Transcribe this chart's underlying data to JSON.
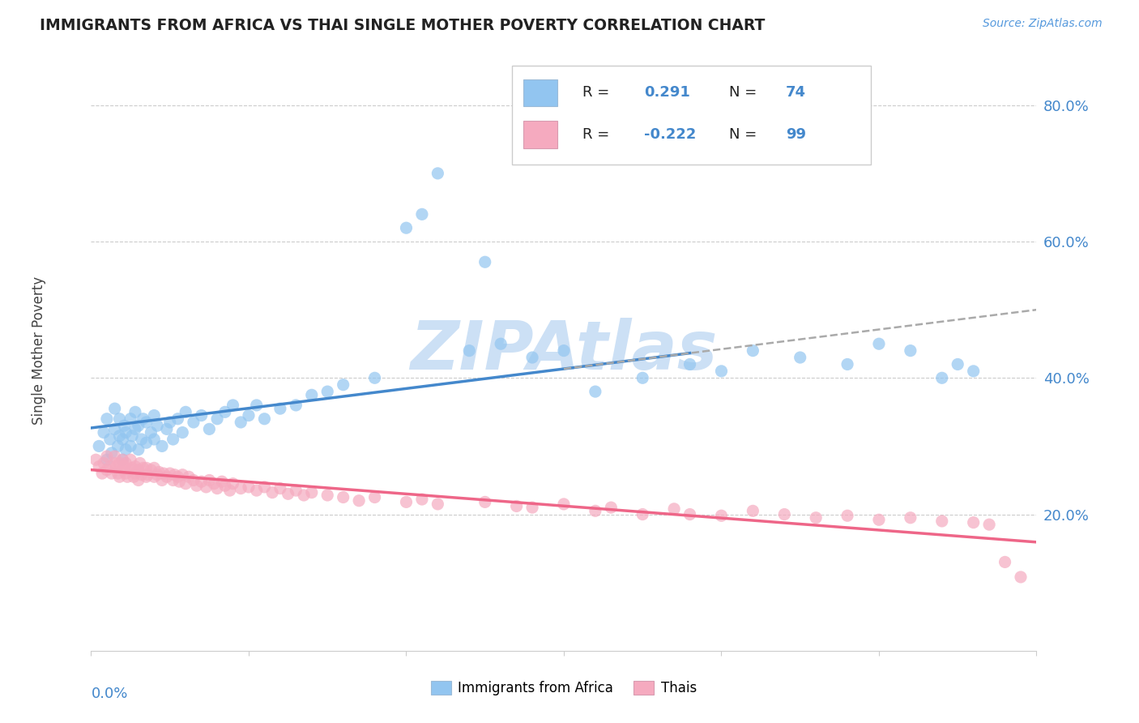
{
  "title": "IMMIGRANTS FROM AFRICA VS THAI SINGLE MOTHER POVERTY CORRELATION CHART",
  "source": "Source: ZipAtlas.com",
  "ylabel": "Single Mother Poverty",
  "right_yticks": [
    0.2,
    0.4,
    0.6,
    0.8
  ],
  "right_yticklabels": [
    "20.0%",
    "40.0%",
    "60.0%",
    "80.0%"
  ],
  "xlim": [
    0.0,
    0.6
  ],
  "ylim": [
    0.0,
    0.88
  ],
  "R_africa": 0.291,
  "N_africa": 74,
  "R_thai": -0.222,
  "N_thai": 99,
  "color_africa": "#92C5F0",
  "color_thai": "#F5AABF",
  "color_africa_line": "#4488CC",
  "color_thai_line": "#EE6688",
  "color_dashed": "#aaaaaa",
  "watermark_text": "ZIPAtlas",
  "watermark_color": "#cce0f5",
  "africa_x": [
    0.005,
    0.008,
    0.01,
    0.01,
    0.012,
    0.013,
    0.015,
    0.015,
    0.017,
    0.018,
    0.018,
    0.02,
    0.02,
    0.021,
    0.022,
    0.022,
    0.025,
    0.025,
    0.026,
    0.028,
    0.028,
    0.03,
    0.03,
    0.032,
    0.033,
    0.035,
    0.035,
    0.038,
    0.04,
    0.04,
    0.042,
    0.045,
    0.048,
    0.05,
    0.052,
    0.055,
    0.058,
    0.06,
    0.065,
    0.07,
    0.075,
    0.08,
    0.085,
    0.09,
    0.095,
    0.1,
    0.105,
    0.11,
    0.12,
    0.13,
    0.14,
    0.15,
    0.16,
    0.18,
    0.2,
    0.21,
    0.22,
    0.24,
    0.25,
    0.26,
    0.28,
    0.3,
    0.32,
    0.35,
    0.38,
    0.4,
    0.42,
    0.45,
    0.48,
    0.5,
    0.52,
    0.54,
    0.55,
    0.56
  ],
  "africa_y": [
    0.3,
    0.32,
    0.28,
    0.34,
    0.31,
    0.29,
    0.325,
    0.355,
    0.3,
    0.315,
    0.34,
    0.28,
    0.31,
    0.33,
    0.295,
    0.32,
    0.34,
    0.3,
    0.315,
    0.325,
    0.35,
    0.295,
    0.33,
    0.31,
    0.34,
    0.305,
    0.335,
    0.32,
    0.31,
    0.345,
    0.33,
    0.3,
    0.325,
    0.335,
    0.31,
    0.34,
    0.32,
    0.35,
    0.335,
    0.345,
    0.325,
    0.34,
    0.35,
    0.36,
    0.335,
    0.345,
    0.36,
    0.34,
    0.355,
    0.36,
    0.375,
    0.38,
    0.39,
    0.4,
    0.62,
    0.64,
    0.7,
    0.44,
    0.57,
    0.45,
    0.43,
    0.44,
    0.38,
    0.4,
    0.42,
    0.41,
    0.44,
    0.43,
    0.42,
    0.45,
    0.44,
    0.4,
    0.42,
    0.41
  ],
  "thai_x": [
    0.003,
    0.005,
    0.007,
    0.008,
    0.01,
    0.01,
    0.012,
    0.013,
    0.015,
    0.015,
    0.016,
    0.017,
    0.018,
    0.018,
    0.02,
    0.02,
    0.021,
    0.022,
    0.022,
    0.023,
    0.025,
    0.025,
    0.026,
    0.027,
    0.028,
    0.028,
    0.03,
    0.03,
    0.031,
    0.032,
    0.033,
    0.035,
    0.035,
    0.036,
    0.038,
    0.04,
    0.04,
    0.042,
    0.043,
    0.045,
    0.046,
    0.048,
    0.05,
    0.052,
    0.053,
    0.055,
    0.056,
    0.058,
    0.06,
    0.062,
    0.065,
    0.067,
    0.07,
    0.073,
    0.075,
    0.078,
    0.08,
    0.083,
    0.085,
    0.088,
    0.09,
    0.095,
    0.1,
    0.105,
    0.11,
    0.115,
    0.12,
    0.125,
    0.13,
    0.135,
    0.14,
    0.15,
    0.16,
    0.17,
    0.18,
    0.2,
    0.21,
    0.22,
    0.25,
    0.27,
    0.28,
    0.3,
    0.32,
    0.33,
    0.35,
    0.37,
    0.38,
    0.4,
    0.42,
    0.44,
    0.46,
    0.48,
    0.5,
    0.52,
    0.54,
    0.56,
    0.57,
    0.58,
    0.59
  ],
  "thai_y": [
    0.28,
    0.27,
    0.26,
    0.275,
    0.265,
    0.285,
    0.27,
    0.26,
    0.275,
    0.285,
    0.27,
    0.26,
    0.275,
    0.255,
    0.265,
    0.28,
    0.27,
    0.26,
    0.275,
    0.255,
    0.265,
    0.28,
    0.268,
    0.255,
    0.27,
    0.26,
    0.25,
    0.265,
    0.275,
    0.258,
    0.268,
    0.255,
    0.268,
    0.258,
    0.265,
    0.255,
    0.268,
    0.258,
    0.262,
    0.25,
    0.26,
    0.255,
    0.26,
    0.25,
    0.258,
    0.255,
    0.248,
    0.258,
    0.245,
    0.255,
    0.25,
    0.242,
    0.248,
    0.24,
    0.25,
    0.245,
    0.238,
    0.248,
    0.242,
    0.235,
    0.245,
    0.238,
    0.24,
    0.235,
    0.24,
    0.232,
    0.238,
    0.23,
    0.235,
    0.228,
    0.232,
    0.228,
    0.225,
    0.22,
    0.225,
    0.218,
    0.222,
    0.215,
    0.218,
    0.212,
    0.21,
    0.215,
    0.205,
    0.21,
    0.2,
    0.208,
    0.2,
    0.198,
    0.205,
    0.2,
    0.195,
    0.198,
    0.192,
    0.195,
    0.19,
    0.188,
    0.185,
    0.13,
    0.108
  ]
}
